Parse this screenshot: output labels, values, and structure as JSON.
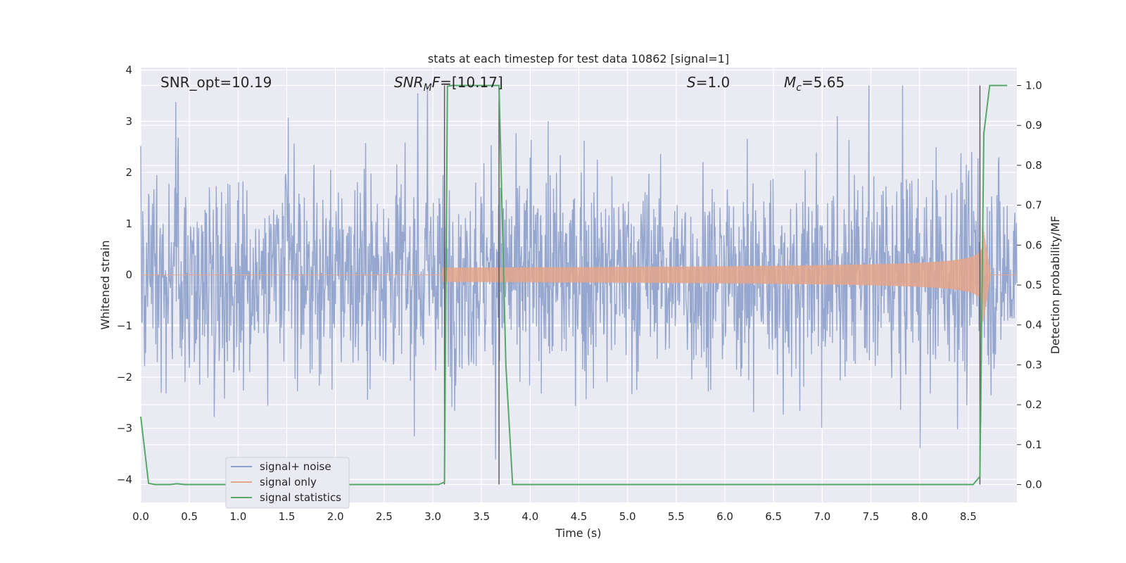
{
  "chart_data": {
    "type": "line",
    "title": "stats at each timestep for test data 10862 [signal=1]",
    "xlabel": "Time (s)",
    "ylabel": "Whitened strain",
    "ylabel_right": "Detection probability/MF",
    "xlim": [
      0,
      9.0
    ],
    "ylim": [
      -4.45,
      4.05
    ],
    "ylim_right": [
      -0.045,
      1.045
    ],
    "grid": true,
    "legend_position": "lower-left",
    "x_ticks": [
      "0.0",
      "0.5",
      "1.0",
      "1.5",
      "2.0",
      "2.5",
      "3.0",
      "3.5",
      "4.0",
      "4.5",
      "5.0",
      "5.5",
      "6.0",
      "6.5",
      "7.0",
      "7.5",
      "8.0",
      "8.5"
    ],
    "y_ticks": [
      "4",
      "3",
      "2",
      "1",
      "0",
      "−1",
      "−2",
      "−3",
      "−4"
    ],
    "y_right_ticks": [
      "1.0",
      "0.9",
      "0.8",
      "0.7",
      "0.6",
      "0.5",
      "0.4",
      "0.3",
      "0.2",
      "0.1",
      "0.0"
    ],
    "annotations": {
      "snr_opt": "SNR_opt=10.19",
      "snr_mf_main": "SNR",
      "snr_mf_sub": "M",
      "snr_mf_italic": "F",
      "snr_mf_value": "=[10.17]",
      "s_italic": "S",
      "s_value": "=1.0",
      "mc_main": "M",
      "mc_sub": "c",
      "mc_value": "=5.65"
    },
    "vertical_lines": [
      3.12,
      3.68,
      8.62
    ],
    "series": [
      {
        "name": "signal+ noise",
        "color": "#8da0cb",
        "kind": "noise",
        "sigma": 1.0,
        "envelope": [
          3.7,
          -4.0
        ]
      },
      {
        "name": "signal only",
        "color": "#e5a58a",
        "kind": "chirp",
        "start": 3.1,
        "merger": 8.65,
        "peak": 0.95
      },
      {
        "name": "signal statistics",
        "color": "#55a868",
        "kind": "step",
        "axis": "right",
        "x": [
          0.0,
          0.08,
          0.15,
          0.3,
          0.37,
          0.45,
          1.0,
          2.0,
          3.0,
          3.06,
          3.12,
          3.15,
          3.2,
          3.6,
          3.68,
          3.75,
          3.82,
          4.5,
          6.0,
          8.0,
          8.55,
          8.62,
          8.66,
          8.72,
          8.9
        ],
        "y": [
          0.17,
          0.003,
          0.0,
          0.0,
          0.002,
          0.0,
          0.0,
          0.0,
          0.0,
          0.0,
          0.006,
          0.998,
          1.0,
          1.0,
          1.0,
          0.3,
          0.0,
          0.0,
          0.0,
          0.0,
          0.0,
          0.02,
          0.88,
          1.0,
          1.0
        ]
      }
    ]
  }
}
